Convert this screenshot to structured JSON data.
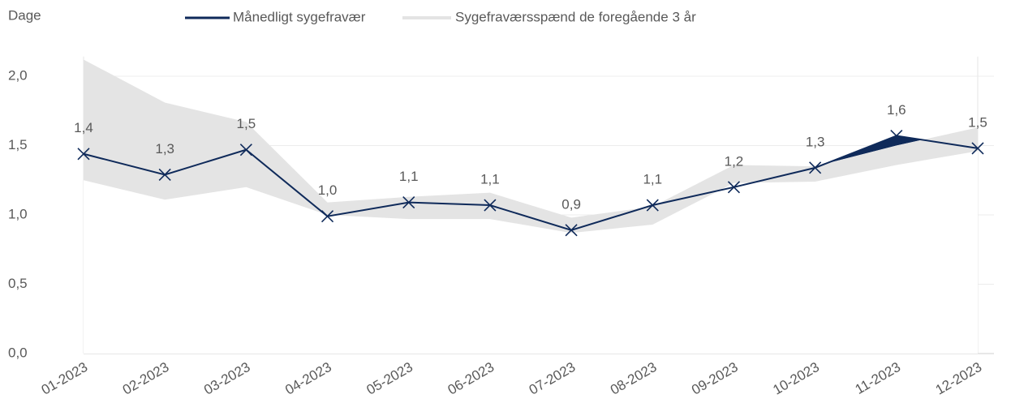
{
  "chart_data": {
    "type": "line",
    "y_label": "Dage",
    "categories": [
      "01-2023",
      "02-2023",
      "03-2023",
      "04-2023",
      "05-2023",
      "06-2023",
      "07-2023",
      "08-2023",
      "09-2023",
      "10-2023",
      "11-2023",
      "12-2023"
    ],
    "series": [
      {
        "name": "Månedligt sygefravær",
        "color": "#0f2a5a",
        "values": [
          1.44,
          1.29,
          1.47,
          0.99,
          1.09,
          1.07,
          0.89,
          1.07,
          1.2,
          1.34,
          1.57,
          1.48
        ],
        "value_labels": [
          "1,4",
          "1,3",
          "1,5",
          "1,0",
          "1,1",
          "1,1",
          "0,9",
          "1,1",
          "1,2",
          "1,3",
          "1,6",
          "1,5"
        ]
      },
      {
        "name": "Sygefraværsspænd de foregående 3 år",
        "color": "#e4e4e4",
        "lower": [
          1.25,
          1.11,
          1.2,
          1.0,
          0.97,
          0.97,
          0.87,
          0.93,
          1.23,
          1.24,
          1.36,
          1.46
        ],
        "upper": [
          2.12,
          1.81,
          1.67,
          1.09,
          1.13,
          1.16,
          0.98,
          1.06,
          1.36,
          1.35,
          1.5,
          1.63
        ]
      }
    ],
    "ylim": [
      0,
      2.2
    ],
    "yticks": [
      {
        "value": 0,
        "label": "0,0"
      },
      {
        "value": 0.5,
        "label": "0,5"
      },
      {
        "value": 1,
        "label": "1,0"
      },
      {
        "value": 1.5,
        "label": "1,5"
      },
      {
        "value": 2,
        "label": "2,0"
      }
    ],
    "grid": true,
    "legend": "top"
  }
}
